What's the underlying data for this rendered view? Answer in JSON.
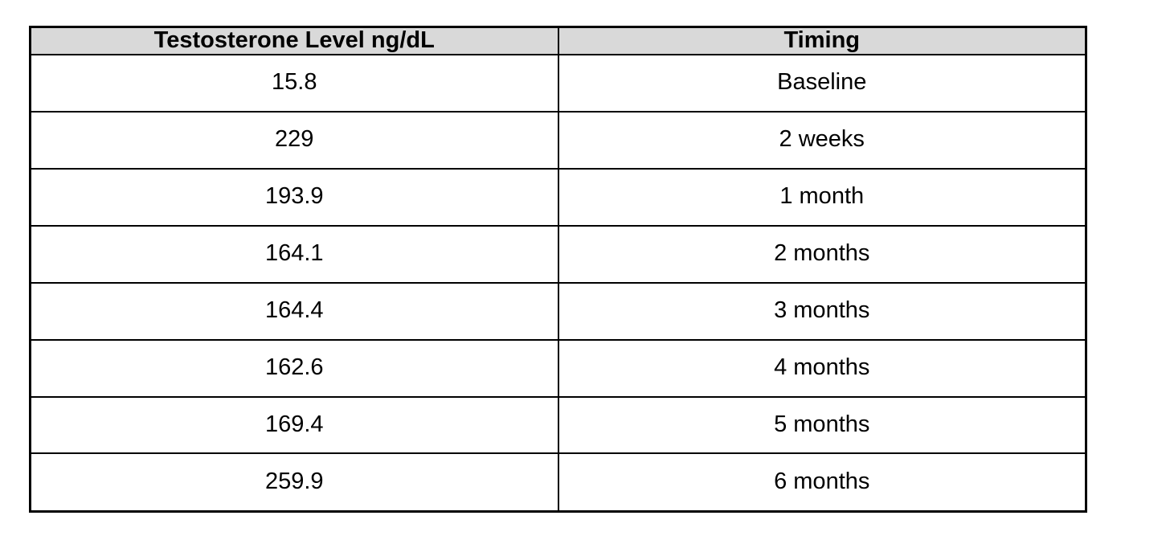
{
  "table": {
    "header_bg": "#d9d9d9",
    "border_color": "#000000",
    "columns": [
      {
        "label": "Testosterone Level ng/dL"
      },
      {
        "label": "Timing"
      }
    ],
    "rows": [
      {
        "level": "15.8",
        "timing": "Baseline"
      },
      {
        "level": "229",
        "timing": "2 weeks"
      },
      {
        "level": "193.9",
        "timing": "1 month"
      },
      {
        "level": "164.1",
        "timing": "2 months"
      },
      {
        "level": "164.4",
        "timing": "3 months"
      },
      {
        "level": "162.6",
        "timing": "4 months"
      },
      {
        "level": "169.4",
        "timing": "5 months"
      },
      {
        "level": "259.9",
        "timing": "6 months"
      }
    ]
  },
  "chart_data": {
    "type": "table",
    "title": "",
    "columns": [
      "Testosterone Level ng/dL",
      "Timing"
    ],
    "categories": [
      "Baseline",
      "2 weeks",
      "1 month",
      "2 months",
      "3 months",
      "4 months",
      "5 months",
      "6 months"
    ],
    "values": [
      15.8,
      229,
      193.9,
      164.1,
      164.4,
      162.6,
      169.4,
      259.9
    ]
  }
}
